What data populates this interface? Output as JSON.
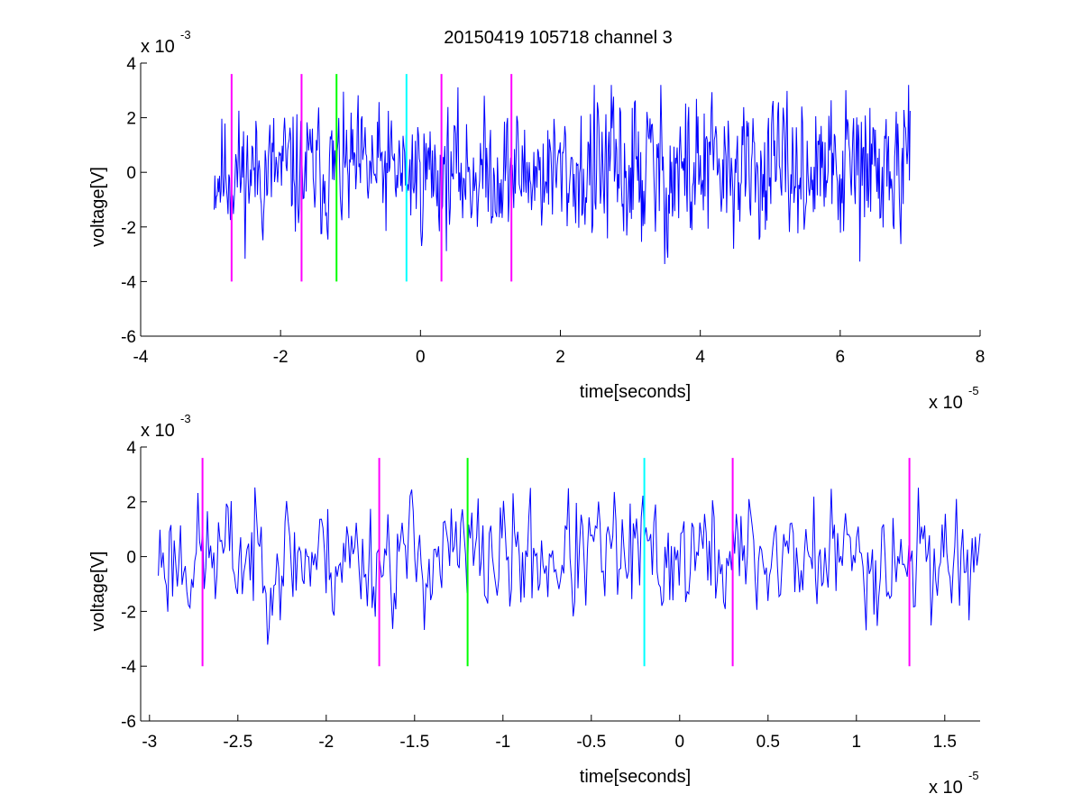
{
  "figure": {
    "title": "20150419 105718 channel 3"
  },
  "chart_data": [
    {
      "type": "line",
      "name_id": "top-panel",
      "xlabel": "time[seconds]",
      "ylabel": "voltage[V]",
      "x_multiplier_label": "x 10",
      "x_multiplier_exp": "-5",
      "y_multiplier_label": "x 10",
      "y_multiplier_exp": "-3",
      "xlim": [
        -4,
        8
      ],
      "ylim": [
        -6,
        4
      ],
      "xticks": [
        -4,
        -2,
        0,
        2,
        4,
        6,
        8
      ],
      "xtick_labels": [
        "-4",
        "-2",
        "0",
        "2",
        "4",
        "6",
        "8"
      ],
      "yticks": [
        -6,
        -4,
        -2,
        0,
        2,
        4
      ],
      "ytick_labels": [
        "-6",
        "-4",
        "-2",
        "0",
        "2",
        "4"
      ],
      "grid": false,
      "signal": {
        "color": "#0000ff",
        "x_range": [
          -2.95,
          7.0
        ],
        "samples": 900,
        "seed": 11
      },
      "markers": [
        {
          "x": -2.7,
          "color": "#ff00ff",
          "y_range": [
            -4,
            3.6
          ]
        },
        {
          "x": -1.7,
          "color": "#ff00ff",
          "y_range": [
            -4,
            3.6
          ]
        },
        {
          "x": -1.2,
          "color": "#00ff00",
          "y_range": [
            -4,
            3.6
          ]
        },
        {
          "x": -0.2,
          "color": "#00ffff",
          "y_range": [
            -4,
            3.6
          ]
        },
        {
          "x": 0.3,
          "color": "#ff00ff",
          "y_range": [
            -4,
            3.6
          ]
        },
        {
          "x": 1.3,
          "color": "#ff00ff",
          "y_range": [
            -4,
            3.6
          ]
        }
      ]
    },
    {
      "type": "line",
      "name_id": "bottom-panel",
      "xlabel": "time[seconds]",
      "ylabel": "voltage[V]",
      "x_multiplier_label": "x 10",
      "x_multiplier_exp": "-5",
      "y_multiplier_label": "x 10",
      "y_multiplier_exp": "-3",
      "xlim": [
        -3.05,
        1.7
      ],
      "ylim": [
        -6,
        4
      ],
      "xticks": [
        -3,
        -2.5,
        -2,
        -1.5,
        -1,
        -0.5,
        0,
        0.5,
        1,
        1.5
      ],
      "xtick_labels": [
        "-3",
        "-2.5",
        "-2",
        "-1.5",
        "-1",
        "-0.5",
        "0",
        "0.5",
        "1",
        "1.5"
      ],
      "yticks": [
        -6,
        -4,
        -2,
        0,
        2,
        4
      ],
      "ytick_labels": [
        "-6",
        "-4",
        "-2",
        "0",
        "2",
        "4"
      ],
      "grid": false,
      "signal": {
        "color": "#0000ff",
        "x_range": [
          -2.95,
          1.7
        ],
        "samples": 520,
        "seed": 23
      },
      "markers": [
        {
          "x": -2.7,
          "color": "#ff00ff",
          "y_range": [
            -4,
            3.6
          ]
        },
        {
          "x": -1.7,
          "color": "#ff00ff",
          "y_range": [
            -4,
            3.6
          ]
        },
        {
          "x": -1.2,
          "color": "#00ff00",
          "y_range": [
            -4,
            3.6
          ]
        },
        {
          "x": -0.2,
          "color": "#00ffff",
          "y_range": [
            -4,
            3.6
          ]
        },
        {
          "x": 0.3,
          "color": "#ff00ff",
          "y_range": [
            -4,
            3.6
          ]
        },
        {
          "x": 1.3,
          "color": "#ff00ff",
          "y_range": [
            -4,
            3.6
          ]
        }
      ]
    }
  ]
}
